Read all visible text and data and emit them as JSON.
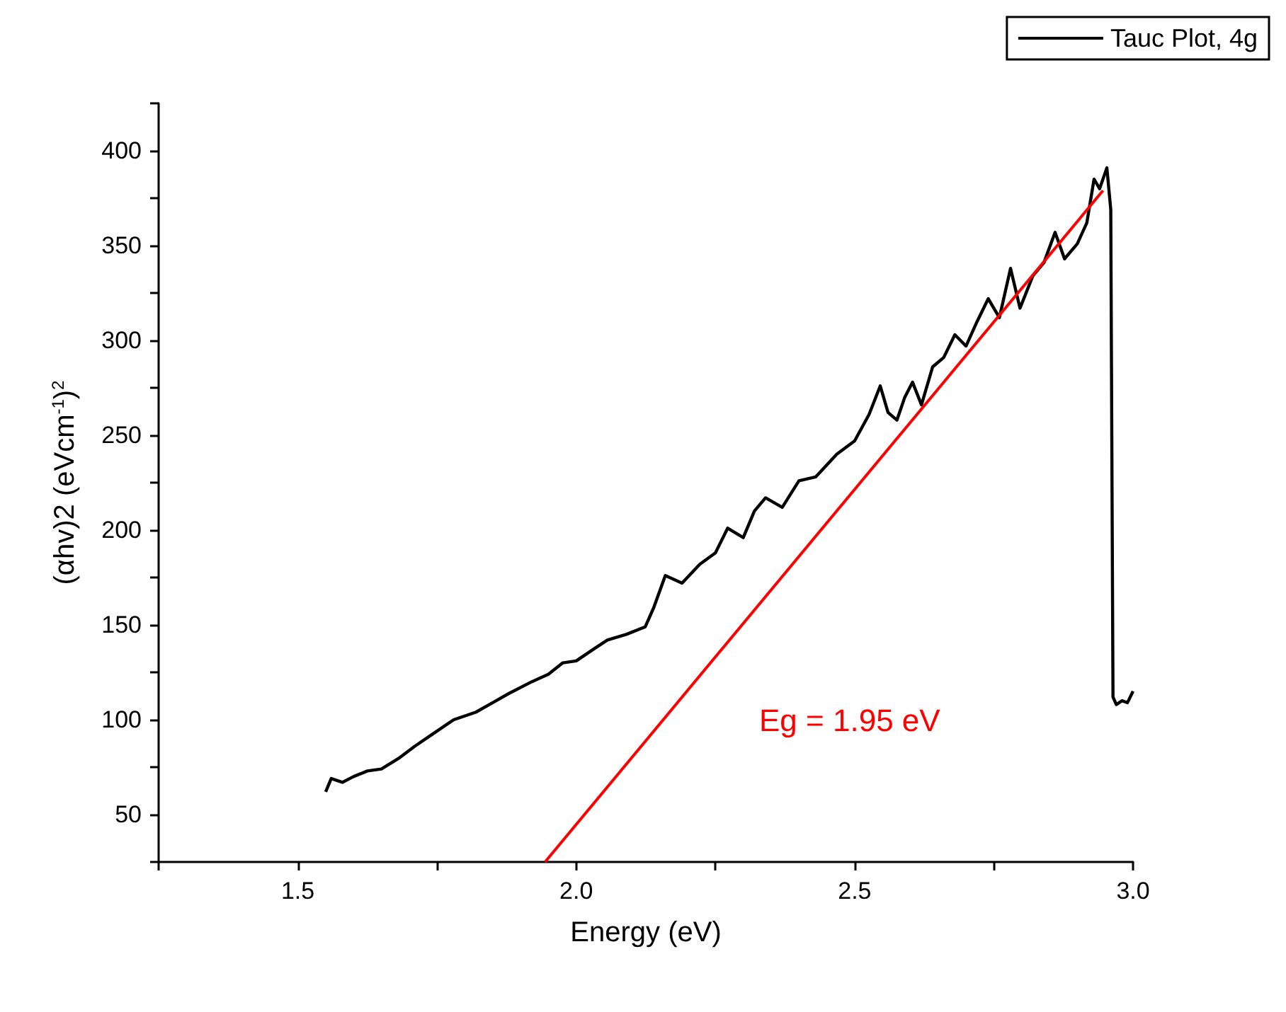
{
  "chart_data": {
    "type": "line",
    "xlabel": "Energy (eV)",
    "ylabel": "(αhv)2 (eVcm$^{-1}$)$^{2}$",
    "xlim": [
      1.25,
      3.0
    ],
    "ylim": [
      25,
      425
    ],
    "xticks": [
      {
        "value": 1.25,
        "label": null
      },
      1.5,
      {
        "value": 1.75,
        "label": null
      },
      {
        "value": 2.0,
        "label": "2.0"
      },
      {
        "value": 2.25,
        "label": null
      },
      2.5,
      {
        "value": 2.75,
        "label": null
      },
      {
        "value": 3.0,
        "label": "3.0"
      }
    ],
    "yticks": [
      {
        "value": 25,
        "label": null
      },
      50,
      {
        "value": 75,
        "label": null
      },
      100,
      {
        "value": 125,
        "label": null
      },
      150,
      {
        "value": 175,
        "label": null
      },
      200,
      {
        "value": 225,
        "label": null
      },
      250,
      {
        "value": 275,
        "label": null
      },
      300,
      {
        "value": 325,
        "label": null
      },
      350,
      {
        "value": 375,
        "label": null
      },
      400,
      {
        "value": 425,
        "label": null
      }
    ],
    "grid": false,
    "legend": "top right",
    "marker": "none",
    "line_style": "solid",
    "annotations": [
      "Eg = 1.95 eV"
    ],
    "series": [
      {
        "name": "Tauc Plot, 4g",
        "color": "#000000",
        "x": [
          1.55,
          1.56,
          1.58,
          1.6,
          1.625,
          1.65,
          1.683,
          1.71,
          1.74,
          1.78,
          1.82,
          1.85,
          1.88,
          1.92,
          1.95,
          1.976,
          2.0,
          2.03,
          2.056,
          2.09,
          2.124,
          2.139,
          2.16,
          2.19,
          2.222,
          2.25,
          2.272,
          2.3,
          2.32,
          2.34,
          2.37,
          2.4,
          2.43,
          2.468,
          2.5,
          2.526,
          2.546,
          2.56,
          2.576,
          2.59,
          2.604,
          2.62,
          2.64,
          2.66,
          2.68,
          2.7,
          2.72,
          2.74,
          2.76,
          2.78,
          2.797,
          2.82,
          2.84,
          2.86,
          2.877,
          2.9,
          2.917,
          2.93,
          2.94,
          2.953,
          2.96,
          2.964,
          2.97,
          2.98,
          2.99,
          3.0
        ],
        "values": [
          62,
          69,
          67,
          70,
          73,
          74,
          80,
          86,
          92,
          100,
          104,
          109,
          114,
          120,
          124,
          130,
          131,
          137,
          142,
          145,
          149,
          159,
          176,
          172,
          182,
          188,
          201,
          196,
          210,
          217,
          212,
          226,
          228,
          240,
          247,
          261,
          276,
          262,
          258,
          270,
          278,
          266,
          286,
          291,
          303,
          297,
          310,
          322,
          312,
          338,
          317,
          334,
          341,
          357,
          343,
          351,
          362,
          385,
          380,
          391,
          369,
          112,
          108,
          110,
          109,
          115
        ]
      },
      {
        "color": "#ff0000",
        "x": [
          1.944,
          2.946
        ],
        "values": [
          25,
          379
        ]
      }
    ]
  }
}
